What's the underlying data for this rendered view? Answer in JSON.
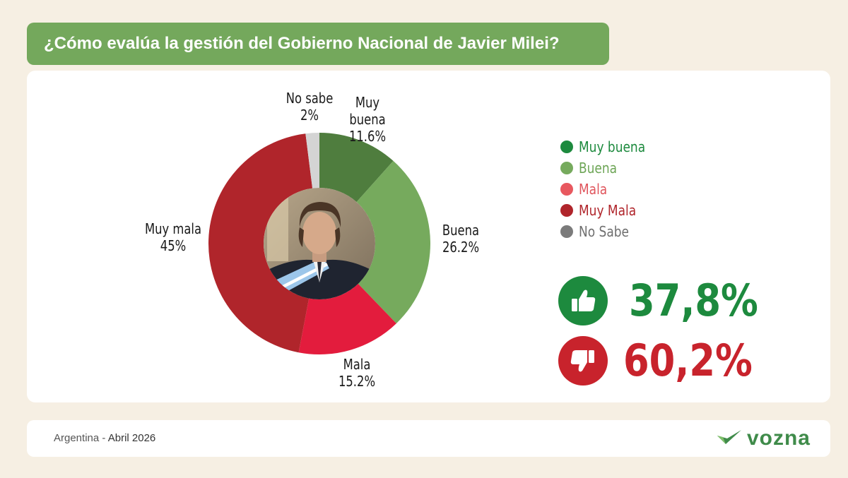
{
  "header": {
    "title": "¿Cómo evalúa la gestión del Gobierno Nacional de Javier Milei?"
  },
  "chart_data": {
    "type": "pie",
    "categories": [
      "Muy buena",
      "Buena",
      "Mala",
      "Muy mala",
      "No sabe"
    ],
    "values": [
      11.6,
      26.2,
      15.2,
      45,
      2
    ],
    "slice_labels": [
      {
        "name": "Muy buena",
        "value": "11.6%"
      },
      {
        "name": "Buena",
        "value": "26.2%"
      },
      {
        "name": "Mala",
        "value": "15.2%"
      },
      {
        "name": "Muy mala",
        "value": "45%"
      },
      {
        "name": "No sabe",
        "value": "2%"
      }
    ],
    "colors": [
      "#4f7d3e",
      "#76aa5d",
      "#e31c3d",
      "#b0252b",
      "#d4d4d4"
    ],
    "legend": [
      {
        "label": "Muy buena",
        "color": "#1d8a3e",
        "text_color": "#1d8a3e"
      },
      {
        "label": "Buena",
        "color": "#76aa5d",
        "text_color": "#6da556"
      },
      {
        "label": "Mala",
        "color": "#e8585f",
        "text_color": "#e0555c"
      },
      {
        "label": "Muy Mala",
        "color": "#b0252b",
        "text_color": "#b0252b"
      },
      {
        "label": "No Sabe",
        "color": "#7b7b7b",
        "text_color": "#6f6f6f"
      }
    ],
    "legend_position": "right",
    "center_image": "president-photo"
  },
  "summary": {
    "positive": {
      "value": "37,8%",
      "icon": "thumbs-up-icon",
      "color": "#1d8a3e"
    },
    "negative": {
      "value": "60,2%",
      "icon": "thumbs-down-icon",
      "color": "#c8232c"
    }
  },
  "footer": {
    "country": "Argentina",
    "separator": " - ",
    "date": "Abril 2026",
    "brand": "vozna",
    "brand_color": "#3f8b4a"
  }
}
